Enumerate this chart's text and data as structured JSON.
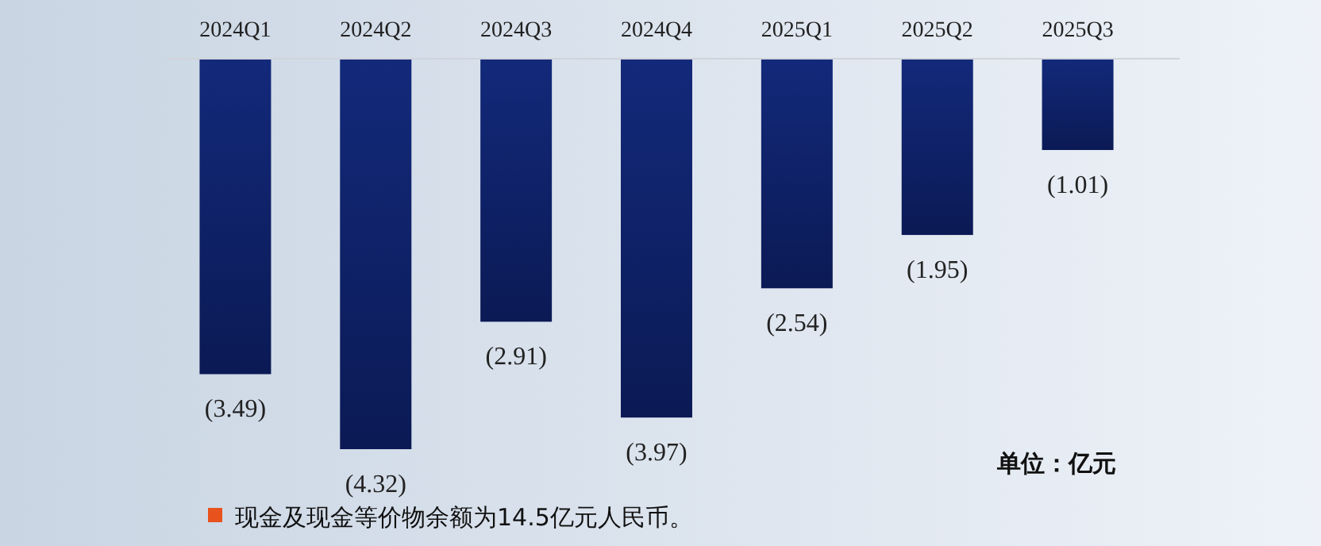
{
  "chart_data": {
    "type": "bar",
    "categories": [
      "2024Q1",
      "2024Q2",
      "2024Q3",
      "2024Q4",
      "2025Q1",
      "2025Q2",
      "2025Q3"
    ],
    "values": [
      -3.49,
      -4.32,
      -2.91,
      -3.97,
      -2.54,
      -1.95,
      -1.01
    ],
    "value_labels": [
      "(3.49)",
      "(4.32)",
      "(2.91)",
      "(3.97)",
      "(2.54)",
      "(1.95)",
      "(1.01)"
    ],
    "color": "#13297a",
    "annotations": [
      "单位：亿元",
      "现金及现金等价物余额为14.5亿元人民币。"
    ]
  }
}
